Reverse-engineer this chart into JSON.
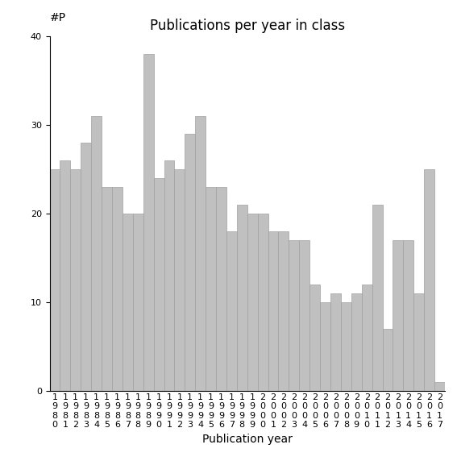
{
  "title": "Publications per year in class",
  "xlabel": "Publication year",
  "ylabel": "#P",
  "years": [
    1980,
    1981,
    1982,
    1983,
    1984,
    1985,
    1986,
    1987,
    1988,
    1989,
    1990,
    1991,
    1992,
    1993,
    1994,
    1995,
    1996,
    1997,
    1998,
    1999,
    2000,
    2001,
    2002,
    2003,
    2004,
    2005,
    2006,
    2007,
    2008,
    2009,
    2010,
    2011,
    2012,
    2013,
    2014,
    2015,
    2016,
    2017
  ],
  "values": [
    25,
    26,
    25,
    28,
    31,
    23,
    23,
    20,
    20,
    38,
    24,
    26,
    25,
    29,
    31,
    23,
    23,
    18,
    21,
    20,
    20,
    18,
    18,
    17,
    17,
    12,
    10,
    11,
    10,
    11,
    12,
    21,
    7,
    17,
    17,
    11,
    25,
    1
  ],
  "bar_color": "#c0c0c0",
  "bar_edgecolor": "#a0a0a0",
  "ylim": [
    0,
    40
  ],
  "yticks": [
    0,
    10,
    20,
    30,
    40
  ],
  "background_color": "#ffffff",
  "title_fontsize": 12,
  "axis_fontsize": 10,
  "tick_fontsize": 8
}
